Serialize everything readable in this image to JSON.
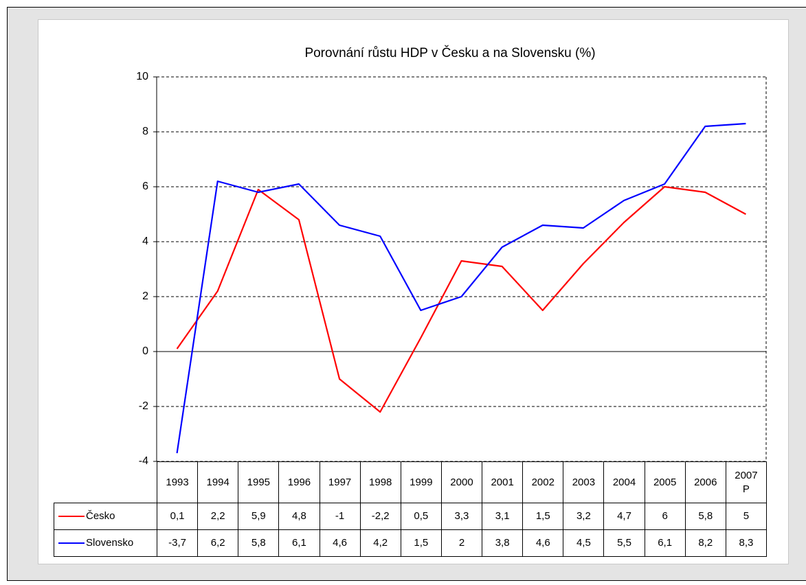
{
  "chart_data": {
    "type": "line",
    "title": "Porovnání růstu HDP v Česku a na Slovensku (%)",
    "categories": [
      "1993",
      "1994",
      "1995",
      "1996",
      "1997",
      "1998",
      "1999",
      "2000",
      "2001",
      "2002",
      "2003",
      "2004",
      "2005",
      "2006",
      "2007\nP"
    ],
    "series": [
      {
        "name": "Česko",
        "color": "#ff0000",
        "values": [
          0.1,
          2.2,
          5.9,
          4.8,
          -1,
          -2.2,
          0.5,
          3.3,
          3.1,
          1.5,
          3.2,
          4.7,
          6,
          5.8,
          5
        ],
        "value_labels": [
          "0,1",
          "2,2",
          "5,9",
          "4,8",
          "-1",
          "-2,2",
          "0,5",
          "3,3",
          "3,1",
          "1,5",
          "3,2",
          "4,7",
          "6",
          "5,8",
          "5"
        ]
      },
      {
        "name": "Slovensko",
        "color": "#0000ff",
        "values": [
          -3.7,
          6.2,
          5.8,
          6.1,
          4.6,
          4.2,
          1.5,
          2,
          3.8,
          4.6,
          4.5,
          5.5,
          6.1,
          8.2,
          8.3
        ],
        "value_labels": [
          "-3,7",
          "6,2",
          "5,8",
          "6,1",
          "4,6",
          "4,2",
          "1,5",
          "2",
          "3,8",
          "4,6",
          "4,5",
          "5,5",
          "6,1",
          "8,2",
          "8,3"
        ]
      }
    ],
    "ylim": [
      -4,
      10
    ],
    "yticks": [
      -4,
      -2,
      0,
      2,
      4,
      6,
      8,
      10
    ],
    "grid": true
  }
}
